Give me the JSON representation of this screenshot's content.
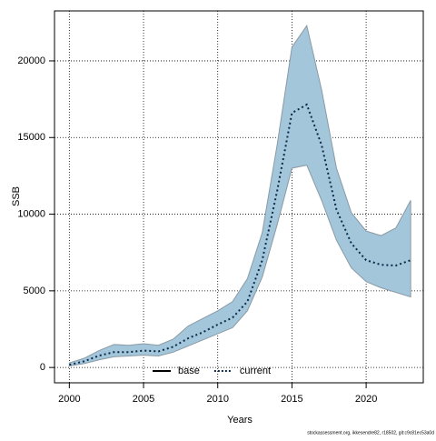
{
  "chart_data": {
    "type": "band-line",
    "xlabel": "Years",
    "ylabel": "SSB",
    "footer": "stockassessment.org, ikkesendre82, r18502, git:c9c81ec53a0d",
    "x": [
      2000,
      2001,
      2002,
      2003,
      2004,
      2005,
      2006,
      2007,
      2008,
      2009,
      2010,
      2011,
      2012,
      2013,
      2014,
      2015,
      2016,
      2017,
      2018,
      2019,
      2020,
      2021,
      2022,
      2023
    ],
    "series": [
      {
        "name": "current",
        "color": "#0b2a4a",
        "values": [
          180,
          400,
          770,
          1000,
          1000,
          1100,
          1050,
          1350,
          1900,
          2300,
          2800,
          3250,
          4300,
          7000,
          11500,
          16600,
          17150,
          14500,
          10300,
          8100,
          7000,
          6700,
          6650,
          7000
        ],
        "lower": [
          100,
          250,
          500,
          700,
          750,
          800,
          750,
          1000,
          1400,
          1800,
          2200,
          2600,
          3700,
          5900,
          9300,
          13000,
          13200,
          10900,
          8300,
          6500,
          5600,
          5200,
          4900,
          4600
        ],
        "upper": [
          300,
          600,
          1100,
          1500,
          1450,
          1550,
          1450,
          1850,
          2700,
          3200,
          3700,
          4300,
          5800,
          8800,
          14500,
          20900,
          22300,
          18100,
          13000,
          10100,
          8900,
          8600,
          9100,
          10900
        ],
        "band_color": "#a3c6db"
      }
    ],
    "legend": [
      {
        "name": "base",
        "color": "#000000",
        "dash": "solid"
      },
      {
        "name": "current",
        "color": "#0b2a4a",
        "dash": "dotted"
      }
    ],
    "xlim": [
      1999,
      2023.85
    ],
    "ylim": [
      -1000,
      23260
    ],
    "xticks": [
      2000,
      2005,
      2010,
      2015,
      2020
    ],
    "yticks": [
      0,
      5000,
      10000,
      15000,
      20000
    ],
    "grid": true
  }
}
